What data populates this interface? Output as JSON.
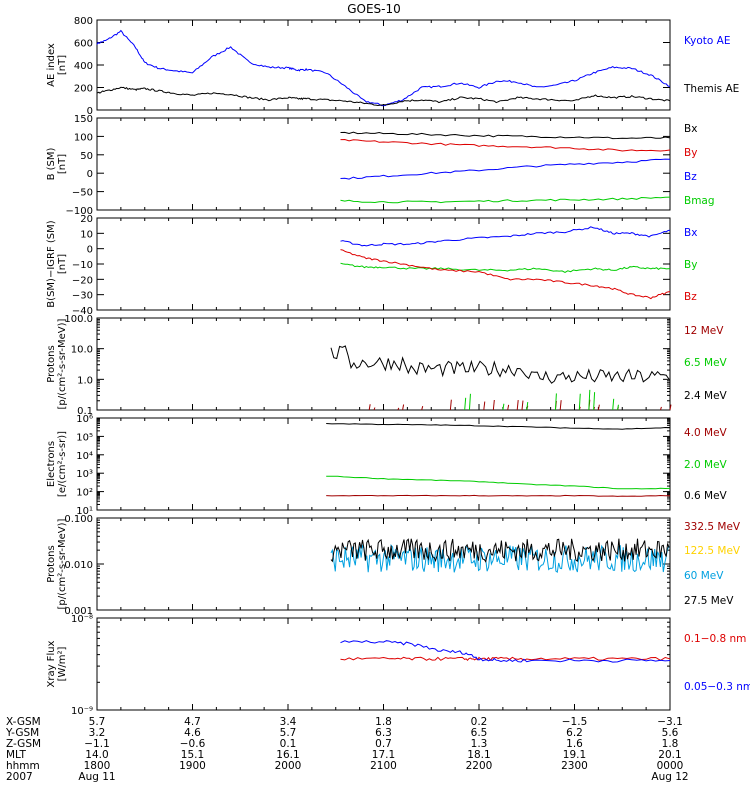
{
  "title": "GOES-10",
  "colors": {
    "black": "#000000",
    "blue": "#0000ff",
    "green": "#00cc00",
    "red": "#dd0000",
    "darkred": "#a00000",
    "yellow": "#ffd200",
    "cyan": "#00a0e0"
  },
  "chart_data": [
    {
      "type": "line",
      "id": "ae",
      "ylabel": [
        "AE index",
        "[nT]"
      ],
      "ylim": [
        0,
        800
      ],
      "yscale": "linear",
      "ticks": [
        0,
        200,
        400,
        600,
        800
      ],
      "tick_labels": [
        "0",
        "200",
        "400",
        "600",
        "800"
      ],
      "x": [
        0,
        0.1,
        0.25,
        0.4,
        0.5,
        0.65,
        0.8,
        1.0,
        1.2,
        1.4,
        1.6,
        1.8,
        2.0,
        2.1,
        2.2,
        2.4,
        2.6,
        2.8,
        3.0,
        3.2,
        3.4,
        3.6,
        3.8,
        4.0,
        4.2,
        4.4,
        4.6,
        4.8,
        5.0,
        5.2,
        5.4,
        5.6,
        5.8,
        6.0
      ],
      "series": [
        {
          "name": "Kyoto AE",
          "color": "blue",
          "values": [
            590,
            620,
            700,
            560,
            420,
            370,
            350,
            330,
            470,
            560,
            420,
            380,
            375,
            355,
            360,
            330,
            210,
            80,
            40,
            90,
            200,
            210,
            240,
            200,
            260,
            250,
            200,
            220,
            260,
            330,
            380,
            370,
            310,
            210
          ]
        },
        {
          "name": "Themis AE",
          "color": "black",
          "values": [
            150,
            170,
            200,
            180,
            190,
            170,
            150,
            130,
            150,
            140,
            110,
            90,
            110,
            100,
            100,
            90,
            80,
            60,
            40,
            80,
            90,
            70,
            110,
            100,
            70,
            110,
            100,
            90,
            80,
            130,
            110,
            120,
            100,
            80
          ]
        }
      ]
    },
    {
      "type": "line",
      "id": "b",
      "ylabel": [
        "B (SM)",
        "[nT]"
      ],
      "ylim": [
        -100,
        150
      ],
      "yscale": "linear",
      "ticks": [
        -100,
        -50,
        0,
        50,
        100,
        150
      ],
      "tick_labels": [
        "−100",
        "−50",
        "0",
        "50",
        "100",
        "150"
      ],
      "x": [
        2.55,
        3.0,
        3.5,
        4.0,
        4.5,
        5.0,
        5.5,
        6.0
      ],
      "series": [
        {
          "name": "Bx",
          "color": "black",
          "values": [
            110,
            108,
            105,
            102,
            100,
            98,
            95,
            96
          ]
        },
        {
          "name": "By",
          "color": "red",
          "values": [
            90,
            85,
            80,
            75,
            72,
            68,
            62,
            63
          ]
        },
        {
          "name": "Bz",
          "color": "blue",
          "values": [
            -15,
            -8,
            0,
            8,
            18,
            25,
            30,
            38
          ]
        },
        {
          "name": "Bmag",
          "color": "green",
          "values": [
            -75,
            -78,
            -78,
            -76,
            -74,
            -72,
            -70,
            -65
          ]
        }
      ]
    },
    {
      "type": "line",
      "id": "bd",
      "ylabel": [
        "B(SM)−IGRF (SM)",
        "[nT]"
      ],
      "ylim": [
        -40,
        20
      ],
      "yscale": "linear",
      "ticks": [
        -40,
        -30,
        -20,
        -10,
        0,
        10,
        20
      ],
      "tick_labels": [
        "−40",
        "−30",
        "−20",
        "−10",
        "0",
        "10",
        "20"
      ],
      "x": [
        2.55,
        2.8,
        3.0,
        3.3,
        3.6,
        4.0,
        4.3,
        4.6,
        4.9,
        5.2,
        5.4,
        5.6,
        5.8,
        6.0
      ],
      "series": [
        {
          "name": "Bx",
          "color": "blue",
          "values": [
            5,
            2,
            3,
            3,
            5,
            7,
            8,
            10,
            11,
            14,
            10,
            10,
            8,
            12
          ]
        },
        {
          "name": "By",
          "color": "green",
          "values": [
            -10,
            -12,
            -12,
            -13,
            -13,
            -14,
            -14,
            -13,
            -15,
            -13,
            -14,
            -12,
            -13,
            -13
          ]
        },
        {
          "name": "Bz",
          "color": "red",
          "values": [
            -1,
            -6,
            -8,
            -11,
            -14,
            -15,
            -20,
            -20,
            -22,
            -24,
            -26,
            -30,
            -32,
            -28
          ]
        }
      ]
    },
    {
      "type": "line",
      "id": "p1",
      "ylabel": [
        "Protons",
        "[p/(cm²-s-sr-MeV)]"
      ],
      "ylim": [
        0.1,
        100
      ],
      "yscale": "log",
      "ticks": [
        0.1,
        1,
        10,
        100
      ],
      "tick_labels": [
        "0.1",
        "1.0",
        "10.0",
        "100.0"
      ],
      "series": [
        {
          "name": "12 MeV",
          "color": "darkred"
        },
        {
          "name": "6.5 MeV",
          "color": "green"
        },
        {
          "name": "2.4 MeV",
          "color": "black"
        }
      ]
    },
    {
      "type": "line",
      "id": "el",
      "ylabel": [
        "Electrons",
        "[e/(cm²-s-sr)]"
      ],
      "ylim": [
        10,
        1000000
      ],
      "yscale": "log",
      "ticks": [
        10,
        100,
        1000,
        10000,
        100000,
        1000000
      ],
      "tick_labels": [
        "10¹",
        "10²",
        "10³",
        "10⁴",
        "10⁵",
        "10⁶"
      ],
      "x": [
        2.4,
        3.0,
        3.5,
        4.0,
        4.5,
        5.0,
        5.5,
        6.0
      ],
      "series": [
        {
          "name": "4.0 MeV",
          "color": "darkred",
          "values": [
            60,
            60,
            60,
            60,
            58,
            60,
            55,
            60
          ]
        },
        {
          "name": "2.0 MeV",
          "color": "green",
          "values": [
            700,
            500,
            420,
            350,
            250,
            200,
            140,
            150
          ]
        },
        {
          "name": "0.6 MeV",
          "color": "black",
          "values": [
            500000,
            450000,
            420000,
            380000,
            330000,
            280000,
            250000,
            300000
          ]
        }
      ]
    },
    {
      "type": "line",
      "id": "p2",
      "ylabel": [
        "Protons",
        "[p/(cm²-s-sr-MeV)]"
      ],
      "ylim": [
        0.001,
        0.1
      ],
      "yscale": "log",
      "ticks": [
        0.001,
        0.01,
        0.1
      ],
      "tick_labels": [
        "0.001",
        "0.010",
        "0.100"
      ],
      "series": [
        {
          "name": "332.5 MeV",
          "color": "darkred"
        },
        {
          "name": "122.5 MeV",
          "color": "yellow"
        },
        {
          "name": "60 MeV",
          "color": "cyan"
        },
        {
          "name": "27.5 MeV",
          "color": "black"
        }
      ]
    },
    {
      "type": "line",
      "id": "xr",
      "ylabel": [
        "Xray Flux",
        "[W/m²]"
      ],
      "ylim": [
        1e-09,
        1e-08
      ],
      "yscale": "log",
      "ticks": [
        1e-09,
        1e-08
      ],
      "tick_labels": [
        "10⁻⁹",
        "10⁻⁸"
      ],
      "x": [
        2.55,
        3.0,
        3.3,
        3.6,
        3.85,
        4.0,
        4.2,
        4.5,
        5.0,
        5.5,
        6.0
      ],
      "series": [
        {
          "name": "0.1−0.8 nm",
          "color": "red",
          "values": [
            3.6e-09,
            3.6e-09,
            3.6e-09,
            3.6e-09,
            3.6e-09,
            3.6e-09,
            3.6e-09,
            3.6e-09,
            3.6e-09,
            3.6e-09,
            3.6e-09
          ]
        },
        {
          "name": "0.05−0.3 nm",
          "color": "blue",
          "values": [
            5.5e-09,
            5.5e-09,
            5.2e-09,
            4.4e-09,
            4.2e-09,
            3.6e-09,
            3.45e-09,
            3.45e-09,
            3.45e-09,
            3.45e-09,
            3.45e-09
          ]
        }
      ]
    }
  ],
  "orbit_table": {
    "row_labels": [
      "X-GSM",
      "Y-GSM",
      "Z-GSM",
      "MLT",
      "hhmm",
      "2007"
    ],
    "columns": [
      [
        "5.7",
        "3.2",
        "−1.1",
        "14.0",
        "1800",
        "Aug 11"
      ],
      [
        "4.7",
        "4.6",
        "−0.6",
        "15.1",
        "1900",
        ""
      ],
      [
        "3.4",
        "5.7",
        "0.1",
        "16.1",
        "2000",
        ""
      ],
      [
        "1.8",
        "6.3",
        "0.7",
        "17.1",
        "2100",
        ""
      ],
      [
        "0.2",
        "6.5",
        "1.3",
        "18.1",
        "2200",
        ""
      ],
      [
        "−1.5",
        "6.2",
        "1.6",
        "19.1",
        "2300",
        ""
      ],
      [
        "−3.1",
        "5.6",
        "1.8",
        "20.1",
        "0000",
        "Aug 12"
      ]
    ]
  }
}
